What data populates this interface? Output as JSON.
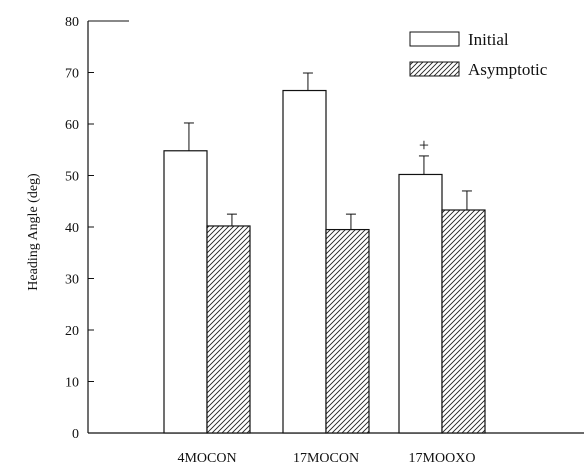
{
  "chart_data": {
    "type": "bar",
    "title": "",
    "xlabel": "",
    "ylabel": "Heading Angle (deg)",
    "ylim": [
      0,
      80
    ],
    "yticks": [
      0,
      10,
      20,
      30,
      40,
      50,
      60,
      70,
      80
    ],
    "grid": false,
    "legend_position": "top-right",
    "categories": [
      "4MOCON",
      "17MOCON",
      "17MOOXO"
    ],
    "series": [
      {
        "name": "Initial",
        "fill": "#ffffff",
        "pattern": "none",
        "values": [
          54.8,
          66.5,
          50.2
        ],
        "errors": [
          5.4,
          3.4,
          3.6
        ]
      },
      {
        "name": "Asymptotic",
        "fill": "#ffffff",
        "pattern": "diagonal-hatch",
        "values": [
          40.2,
          39.5,
          43.3
        ],
        "errors": [
          2.3,
          3.0,
          3.7
        ]
      }
    ],
    "annotations": [
      {
        "text": "+",
        "category": "17MOOXO",
        "series": "Initial"
      }
    ]
  }
}
